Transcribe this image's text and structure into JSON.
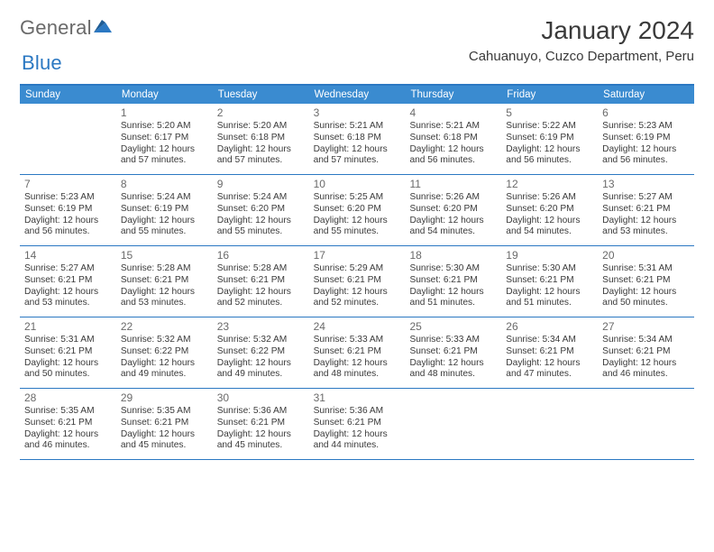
{
  "logo": {
    "text1": "General",
    "text2": "Blue"
  },
  "title": "January 2024",
  "location": "Cahuanuyo, Cuzco Department, Peru",
  "colors": {
    "accent": "#2b78c2",
    "header_bg": "#3a8bd0",
    "header_text": "#ffffff",
    "body_text": "#3a3a3a",
    "daynum": "#6a6a6a",
    "background": "#ffffff"
  },
  "day_headers": [
    "Sunday",
    "Monday",
    "Tuesday",
    "Wednesday",
    "Thursday",
    "Friday",
    "Saturday"
  ],
  "weeks": [
    [
      null,
      {
        "n": "1",
        "r": "Sunrise: 5:20 AM",
        "s": "Sunset: 6:17 PM",
        "d1": "Daylight: 12 hours",
        "d2": "and 57 minutes."
      },
      {
        "n": "2",
        "r": "Sunrise: 5:20 AM",
        "s": "Sunset: 6:18 PM",
        "d1": "Daylight: 12 hours",
        "d2": "and 57 minutes."
      },
      {
        "n": "3",
        "r": "Sunrise: 5:21 AM",
        "s": "Sunset: 6:18 PM",
        "d1": "Daylight: 12 hours",
        "d2": "and 57 minutes."
      },
      {
        "n": "4",
        "r": "Sunrise: 5:21 AM",
        "s": "Sunset: 6:18 PM",
        "d1": "Daylight: 12 hours",
        "d2": "and 56 minutes."
      },
      {
        "n": "5",
        "r": "Sunrise: 5:22 AM",
        "s": "Sunset: 6:19 PM",
        "d1": "Daylight: 12 hours",
        "d2": "and 56 minutes."
      },
      {
        "n": "6",
        "r": "Sunrise: 5:23 AM",
        "s": "Sunset: 6:19 PM",
        "d1": "Daylight: 12 hours",
        "d2": "and 56 minutes."
      }
    ],
    [
      {
        "n": "7",
        "r": "Sunrise: 5:23 AM",
        "s": "Sunset: 6:19 PM",
        "d1": "Daylight: 12 hours",
        "d2": "and 56 minutes."
      },
      {
        "n": "8",
        "r": "Sunrise: 5:24 AM",
        "s": "Sunset: 6:19 PM",
        "d1": "Daylight: 12 hours",
        "d2": "and 55 minutes."
      },
      {
        "n": "9",
        "r": "Sunrise: 5:24 AM",
        "s": "Sunset: 6:20 PM",
        "d1": "Daylight: 12 hours",
        "d2": "and 55 minutes."
      },
      {
        "n": "10",
        "r": "Sunrise: 5:25 AM",
        "s": "Sunset: 6:20 PM",
        "d1": "Daylight: 12 hours",
        "d2": "and 55 minutes."
      },
      {
        "n": "11",
        "r": "Sunrise: 5:26 AM",
        "s": "Sunset: 6:20 PM",
        "d1": "Daylight: 12 hours",
        "d2": "and 54 minutes."
      },
      {
        "n": "12",
        "r": "Sunrise: 5:26 AM",
        "s": "Sunset: 6:20 PM",
        "d1": "Daylight: 12 hours",
        "d2": "and 54 minutes."
      },
      {
        "n": "13",
        "r": "Sunrise: 5:27 AM",
        "s": "Sunset: 6:21 PM",
        "d1": "Daylight: 12 hours",
        "d2": "and 53 minutes."
      }
    ],
    [
      {
        "n": "14",
        "r": "Sunrise: 5:27 AM",
        "s": "Sunset: 6:21 PM",
        "d1": "Daylight: 12 hours",
        "d2": "and 53 minutes."
      },
      {
        "n": "15",
        "r": "Sunrise: 5:28 AM",
        "s": "Sunset: 6:21 PM",
        "d1": "Daylight: 12 hours",
        "d2": "and 53 minutes."
      },
      {
        "n": "16",
        "r": "Sunrise: 5:28 AM",
        "s": "Sunset: 6:21 PM",
        "d1": "Daylight: 12 hours",
        "d2": "and 52 minutes."
      },
      {
        "n": "17",
        "r": "Sunrise: 5:29 AM",
        "s": "Sunset: 6:21 PM",
        "d1": "Daylight: 12 hours",
        "d2": "and 52 minutes."
      },
      {
        "n": "18",
        "r": "Sunrise: 5:30 AM",
        "s": "Sunset: 6:21 PM",
        "d1": "Daylight: 12 hours",
        "d2": "and 51 minutes."
      },
      {
        "n": "19",
        "r": "Sunrise: 5:30 AM",
        "s": "Sunset: 6:21 PM",
        "d1": "Daylight: 12 hours",
        "d2": "and 51 minutes."
      },
      {
        "n": "20",
        "r": "Sunrise: 5:31 AM",
        "s": "Sunset: 6:21 PM",
        "d1": "Daylight: 12 hours",
        "d2": "and 50 minutes."
      }
    ],
    [
      {
        "n": "21",
        "r": "Sunrise: 5:31 AM",
        "s": "Sunset: 6:21 PM",
        "d1": "Daylight: 12 hours",
        "d2": "and 50 minutes."
      },
      {
        "n": "22",
        "r": "Sunrise: 5:32 AM",
        "s": "Sunset: 6:22 PM",
        "d1": "Daylight: 12 hours",
        "d2": "and 49 minutes."
      },
      {
        "n": "23",
        "r": "Sunrise: 5:32 AM",
        "s": "Sunset: 6:22 PM",
        "d1": "Daylight: 12 hours",
        "d2": "and 49 minutes."
      },
      {
        "n": "24",
        "r": "Sunrise: 5:33 AM",
        "s": "Sunset: 6:21 PM",
        "d1": "Daylight: 12 hours",
        "d2": "and 48 minutes."
      },
      {
        "n": "25",
        "r": "Sunrise: 5:33 AM",
        "s": "Sunset: 6:21 PM",
        "d1": "Daylight: 12 hours",
        "d2": "and 48 minutes."
      },
      {
        "n": "26",
        "r": "Sunrise: 5:34 AM",
        "s": "Sunset: 6:21 PM",
        "d1": "Daylight: 12 hours",
        "d2": "and 47 minutes."
      },
      {
        "n": "27",
        "r": "Sunrise: 5:34 AM",
        "s": "Sunset: 6:21 PM",
        "d1": "Daylight: 12 hours",
        "d2": "and 46 minutes."
      }
    ],
    [
      {
        "n": "28",
        "r": "Sunrise: 5:35 AM",
        "s": "Sunset: 6:21 PM",
        "d1": "Daylight: 12 hours",
        "d2": "and 46 minutes."
      },
      {
        "n": "29",
        "r": "Sunrise: 5:35 AM",
        "s": "Sunset: 6:21 PM",
        "d1": "Daylight: 12 hours",
        "d2": "and 45 minutes."
      },
      {
        "n": "30",
        "r": "Sunrise: 5:36 AM",
        "s": "Sunset: 6:21 PM",
        "d1": "Daylight: 12 hours",
        "d2": "and 45 minutes."
      },
      {
        "n": "31",
        "r": "Sunrise: 5:36 AM",
        "s": "Sunset: 6:21 PM",
        "d1": "Daylight: 12 hours",
        "d2": "and 44 minutes."
      },
      null,
      null,
      null
    ]
  ]
}
